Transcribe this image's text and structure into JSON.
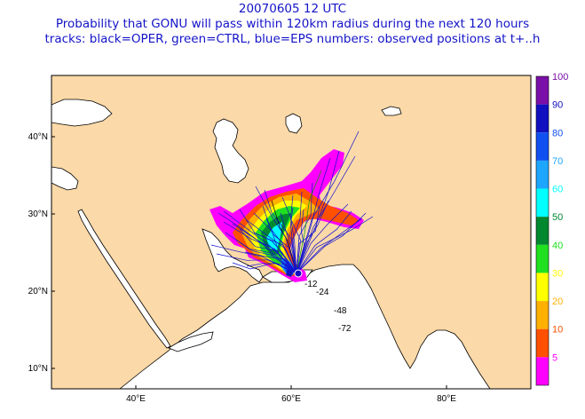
{
  "header": {
    "line1": "20070605 12 UTC",
    "line2": "Probability that GONU will pass within 120km radius during the next 120 hours",
    "line3": "tracks: black=OPER, green=CTRL, blue=EPS numbers: observed positions at t+..h"
  },
  "map": {
    "lat_ticks": [
      "40°N",
      "30°N",
      "20°N",
      "10°N"
    ],
    "lon_ticks": [
      "40°E",
      "60°E",
      "80°E"
    ],
    "colors": {
      "land": "#fcd9a8",
      "sea": "#ffffff",
      "coast": "#000000",
      "track": "#1010d0"
    }
  },
  "observed": [
    "-12",
    "-24",
    "-48",
    "-72"
  ],
  "colorbar": {
    "labels": [
      "100",
      "90",
      "80",
      "70",
      "60",
      "50",
      "40",
      "30",
      "20",
      "10",
      "5"
    ],
    "colors": [
      "#7a10a8",
      "#1010c0",
      "#1050f0",
      "#1ea6ff",
      "#00ffff",
      "#008830",
      "#20e020",
      "#ffff00",
      "#ffb000",
      "#ff5000",
      "#ff00ff"
    ]
  }
}
